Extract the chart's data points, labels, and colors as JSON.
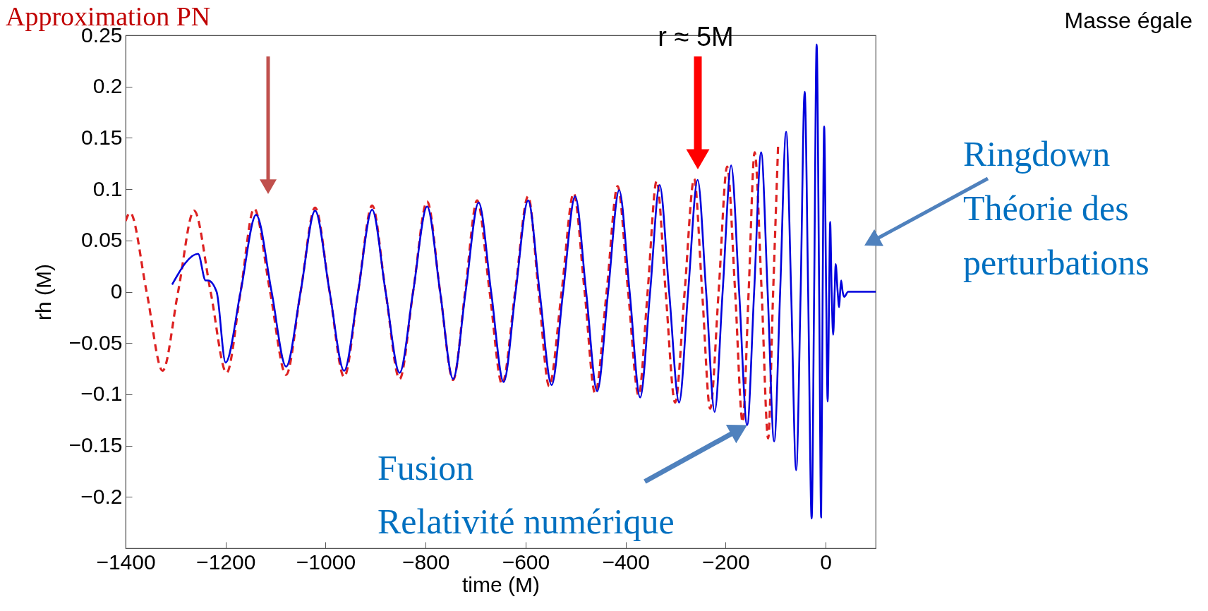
{
  "chart_data": {
    "type": "line",
    "xlabel": "time (M)",
    "ylabel": "rh (M)",
    "xlim": [
      -1400,
      100
    ],
    "xticks": [
      -1400,
      -1200,
      -1000,
      -800,
      -600,
      -400,
      -200,
      0
    ],
    "ylim": [
      -0.25,
      0.25
    ],
    "yticks": [
      -0.2,
      -0.15,
      -0.1,
      -0.05,
      0,
      0.05,
      0.1,
      0.15,
      0.2,
      0.25
    ],
    "grid": false,
    "series": [
      {
        "color": "#dd2222",
        "line_style": "dashed",
        "x": [
          -1400,
          -1391,
          -1358,
          -1326,
          -1295,
          -1263,
          -1230,
          -1198,
          -1170,
          -1143,
          -1111,
          -1079,
          -1050,
          -1021,
          -992,
          -963,
          -935,
          -907,
          -880,
          -852,
          -825,
          -797,
          -771,
          -745,
          -721,
          -697,
          -672,
          -647,
          -621,
          -595,
          -574,
          -553,
          -528,
          -504,
          -482,
          -461,
          -438,
          -416,
          -395,
          -374,
          -356,
          -338,
          -320,
          -301,
          -282,
          -263,
          -247,
          -231,
          -214,
          -197,
          -181,
          -166,
          -154,
          -142,
          -128,
          -115,
          -105,
          -95
        ],
        "values": [
          0.069,
          0.077,
          0,
          -0.077,
          0,
          0.079,
          0,
          -0.079,
          0,
          0.081,
          0,
          -0.081,
          0,
          0.082,
          0,
          -0.083,
          0,
          0.084,
          0,
          -0.085,
          0,
          0.088,
          0,
          -0.086,
          0,
          0.089,
          0,
          -0.09,
          0,
          0.093,
          0,
          -0.092,
          0,
          0.096,
          0,
          -0.099,
          0,
          0.103,
          0,
          -0.101,
          0,
          0.108,
          0,
          -0.108,
          0,
          0.11,
          0,
          -0.114,
          0,
          0.122,
          0,
          -0.127,
          0,
          0.136,
          0,
          -0.143,
          0,
          0.144
        ]
      },
      {
        "color": "#0000dd",
        "line_style": "solid",
        "x": [
          -1307,
          -1255,
          -1240,
          -1235,
          -1218,
          -1200,
          -1170,
          -1139,
          -1108,
          -1079,
          -1050,
          -1021,
          -992,
          -963,
          -935,
          -907,
          -880,
          -852,
          -825,
          -797,
          -771,
          -745,
          -720,
          -694,
          -669,
          -644,
          -620,
          -595,
          -572,
          -548,
          -525,
          -501,
          -479,
          -457,
          -435,
          -413,
          -392,
          -371,
          -351,
          -332,
          -313,
          -293,
          -275,
          -256,
          -239,
          -222,
          -206,
          -189,
          -173,
          -157,
          -143,
          -129,
          -116,
          -103,
          -91,
          -79,
          -69,
          -59,
          -50,
          -42,
          -35,
          -28,
          -23,
          -18,
          -13,
          -9,
          -6,
          -3,
          1,
          4,
          7,
          9,
          12,
          15,
          18,
          20,
          24,
          27,
          29,
          31,
          34,
          37,
          45,
          58,
          100
        ],
        "values": [
          0.007,
          0.037,
          0.011,
          0.011,
          0,
          -0.069,
          0,
          0.075,
          0,
          -0.073,
          0,
          0.079,
          0,
          -0.077,
          0,
          0.08,
          0,
          -0.079,
          0,
          0.083,
          0,
          -0.085,
          0,
          0.087,
          0,
          -0.088,
          0,
          0.089,
          0,
          -0.091,
          0,
          0.093,
          0,
          -0.097,
          0,
          0.099,
          0,
          -0.103,
          0,
          0.104,
          0,
          -0.108,
          0,
          0.109,
          0,
          -0.117,
          0,
          0.123,
          0,
          -0.13,
          0,
          0.136,
          0,
          -0.146,
          0,
          0.156,
          0,
          -0.174,
          0,
          0.195,
          0,
          -0.221,
          0,
          0.241,
          0,
          -0.22,
          0,
          0.161,
          0,
          -0.107,
          0,
          0.068,
          0,
          -0.042,
          0,
          0.027,
          0,
          -0.015,
          0,
          0.011,
          0,
          -0.005,
          0,
          0,
          0
        ]
      }
    ],
    "annotations": [
      "Approximation PN",
      "r ≈ 5M",
      {
        "text": "Fusion\nRelativité numérique",
        "x": -157,
        "y": -0.13
      },
      "Ringdown\nThéorie des\nperturbations",
      "Masse égale"
    ]
  }
}
